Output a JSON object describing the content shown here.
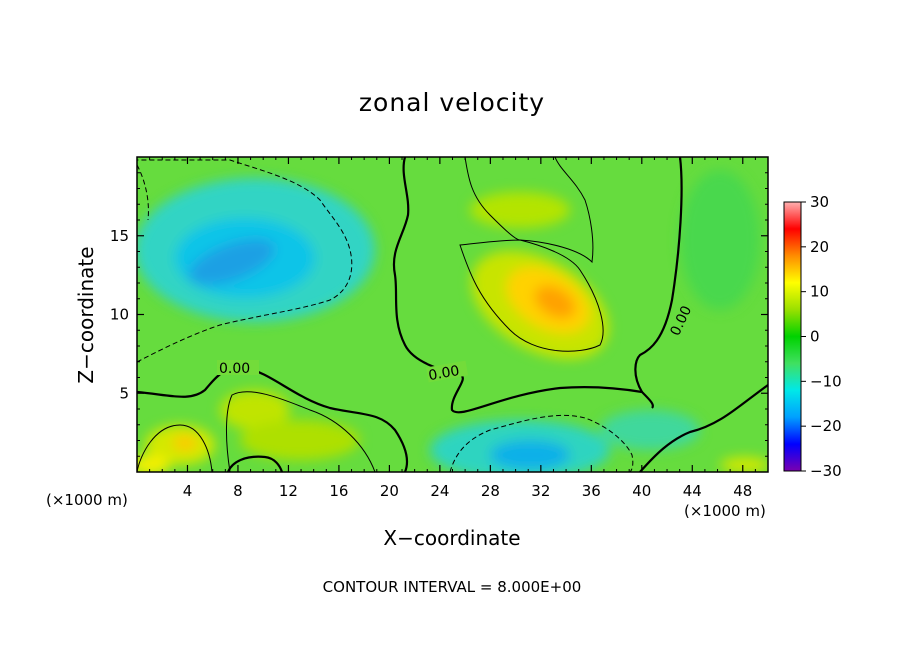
{
  "title": "zonal velocity",
  "xlabel": "X−coordinate",
  "ylabel": "Z−coordinate",
  "x_unit": "(×1000 m)",
  "x_unit_right": "(×1000 m)",
  "contour_note": "CONTOUR INTERVAL = 8.000E+00",
  "chart_data": {
    "type": "heatmap",
    "title": "zonal velocity",
    "xlabel": "X−coordinate",
    "ylabel": "Z−coordinate",
    "x_unit": "(×1000 m)",
    "xlim": [
      0,
      50
    ],
    "ylim": [
      0,
      20
    ],
    "x_ticks": [
      4,
      8,
      12,
      16,
      20,
      24,
      28,
      32,
      36,
      40,
      44,
      48
    ],
    "y_ticks": [
      5,
      10,
      15
    ],
    "colorbar": {
      "range": [
        -30,
        30
      ],
      "ticks": [
        30,
        20,
        10,
        0,
        -10,
        -20,
        -30
      ],
      "tick_labels": [
        "30",
        "20",
        "10",
        "0",
        "−10",
        "−20",
        "−30"
      ],
      "colormap": [
        "#7a00b0",
        "#0000ff",
        "#00a0ff",
        "#00e8e8",
        "#40e060",
        "#00d200",
        "#9ae000",
        "#ffff00",
        "#ff8c00",
        "#ff0000",
        "#ffb0b0"
      ]
    },
    "contour_interval": 8.0,
    "contour_labels": [
      "0.00",
      "0.00",
      "0.00"
    ],
    "features": [
      {
        "type": "min",
        "x": 7.5,
        "z": 13.5,
        "value": -14
      },
      {
        "type": "min",
        "x": 31,
        "z": 1.5,
        "value": -14
      },
      {
        "type": "max",
        "x": 32,
        "z": 11,
        "value": 12
      },
      {
        "type": "max",
        "x": 3.5,
        "z": 2,
        "value": 10
      },
      {
        "type": "max",
        "x": 8.5,
        "z": 4,
        "value": 8
      }
    ]
  }
}
